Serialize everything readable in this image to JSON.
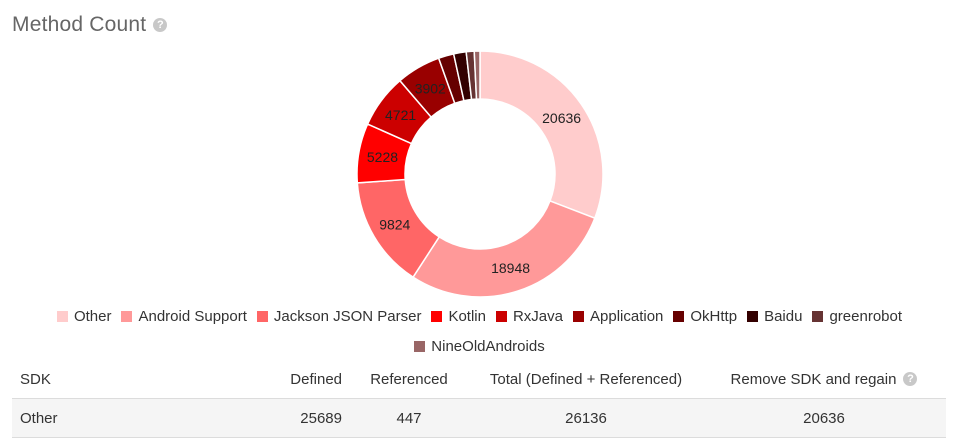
{
  "header": {
    "title": "Method Count",
    "help_icon": "question-circle-icon"
  },
  "chart_data": {
    "type": "pie",
    "style": "donut",
    "slices": [
      {
        "name": "Other",
        "value": 20636,
        "color": "#ffcccc"
      },
      {
        "name": "Android Support",
        "value": 18948,
        "color": "#ff9999"
      },
      {
        "name": "Jackson JSON Parser",
        "value": 9824,
        "color": "#ff6666"
      },
      {
        "name": "Kotlin",
        "value": 5228,
        "color": "#ff0000"
      },
      {
        "name": "RxJava",
        "value": 4721,
        "color": "#cc0000"
      },
      {
        "name": "Application",
        "value": 3902,
        "color": "#990000"
      },
      {
        "name": "OkHttp",
        "value": 1350,
        "color": "#660000"
      },
      {
        "name": "Baidu",
        "value": 1100,
        "color": "#330000"
      },
      {
        "name": "greenrobot",
        "value": 700,
        "color": "#663333"
      },
      {
        "name": "NineOldAndroids",
        "value": 500,
        "color": "#996666"
      }
    ],
    "labeled_slices": 6,
    "legend_position": "bottom"
  },
  "table": {
    "headers": {
      "sdk": "SDK",
      "defined": "Defined",
      "referenced": "Referenced",
      "total": "Total (Defined + Referenced)",
      "remove": "Remove SDK and regain"
    },
    "rows": [
      {
        "sdk": "Other",
        "defined": "25689",
        "referenced": "447",
        "total": "26136",
        "remove": "20636"
      }
    ]
  }
}
